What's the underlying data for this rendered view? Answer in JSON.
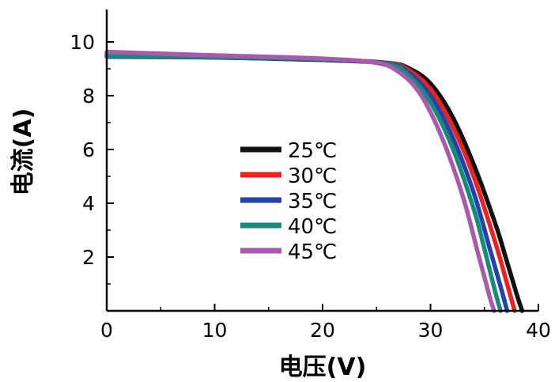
{
  "chart_data": {
    "type": "line",
    "xlabel": "电压(V)",
    "ylabel": "电流(A)",
    "xlim": [
      0,
      40
    ],
    "ylim": [
      0,
      11
    ],
    "x_ticks": [
      0,
      10,
      20,
      30,
      40
    ],
    "x_tick_labels": [
      "0",
      "10",
      "20",
      "30",
      "40"
    ],
    "y_ticks": [
      2,
      4,
      6,
      8,
      10
    ],
    "y_tick_labels": [
      "2",
      "4",
      "6",
      "8",
      "10"
    ],
    "grid": false,
    "legend_position": "center",
    "series": [
      {
        "name": "25℃",
        "color": "#111111",
        "points": [
          [
            0,
            9.52
          ],
          [
            10,
            9.43
          ],
          [
            20,
            9.33
          ],
          [
            26,
            9.22
          ],
          [
            28,
            9.02
          ],
          [
            30,
            8.45
          ],
          [
            32,
            7.25
          ],
          [
            34,
            5.45
          ],
          [
            36,
            3.25
          ],
          [
            37,
            1.95
          ],
          [
            38,
            0.6
          ],
          [
            38.5,
            0
          ]
        ]
      },
      {
        "name": "30℃",
        "color": "#ee2020",
        "points": [
          [
            0,
            9.54
          ],
          [
            10,
            9.45
          ],
          [
            20,
            9.35
          ],
          [
            26,
            9.22
          ],
          [
            28,
            8.95
          ],
          [
            30,
            8.25
          ],
          [
            32,
            6.9
          ],
          [
            34,
            5.0
          ],
          [
            36,
            2.55
          ],
          [
            37,
            1.15
          ],
          [
            37.8,
            0
          ]
        ]
      },
      {
        "name": "35℃",
        "color": "#2244aa",
        "points": [
          [
            0,
            9.45
          ],
          [
            10,
            9.42
          ],
          [
            20,
            9.34
          ],
          [
            26,
            9.2
          ],
          [
            28,
            8.85
          ],
          [
            30,
            8.0
          ],
          [
            32,
            6.5
          ],
          [
            34,
            4.4
          ],
          [
            35.5,
            2.3
          ],
          [
            36.5,
            0.9
          ],
          [
            37.1,
            0
          ]
        ]
      },
      {
        "name": "40℃",
        "color": "#178a7c",
        "points": [
          [
            0,
            9.47
          ],
          [
            10,
            9.44
          ],
          [
            20,
            9.36
          ],
          [
            26,
            9.18
          ],
          [
            28,
            8.75
          ],
          [
            30,
            7.75
          ],
          [
            32,
            6.1
          ],
          [
            34,
            3.8
          ],
          [
            35,
            2.3
          ],
          [
            36,
            0.7
          ],
          [
            36.5,
            0
          ]
        ]
      },
      {
        "name": "45℃",
        "color": "#a95aad",
        "points": [
          [
            0,
            9.63
          ],
          [
            10,
            9.5
          ],
          [
            20,
            9.38
          ],
          [
            25,
            9.22
          ],
          [
            27,
            8.9
          ],
          [
            29,
            8.1
          ],
          [
            31,
            6.5
          ],
          [
            33,
            4.25
          ],
          [
            34.5,
            2.0
          ],
          [
            35.5,
            0.5
          ],
          [
            35.9,
            0
          ]
        ]
      }
    ]
  }
}
